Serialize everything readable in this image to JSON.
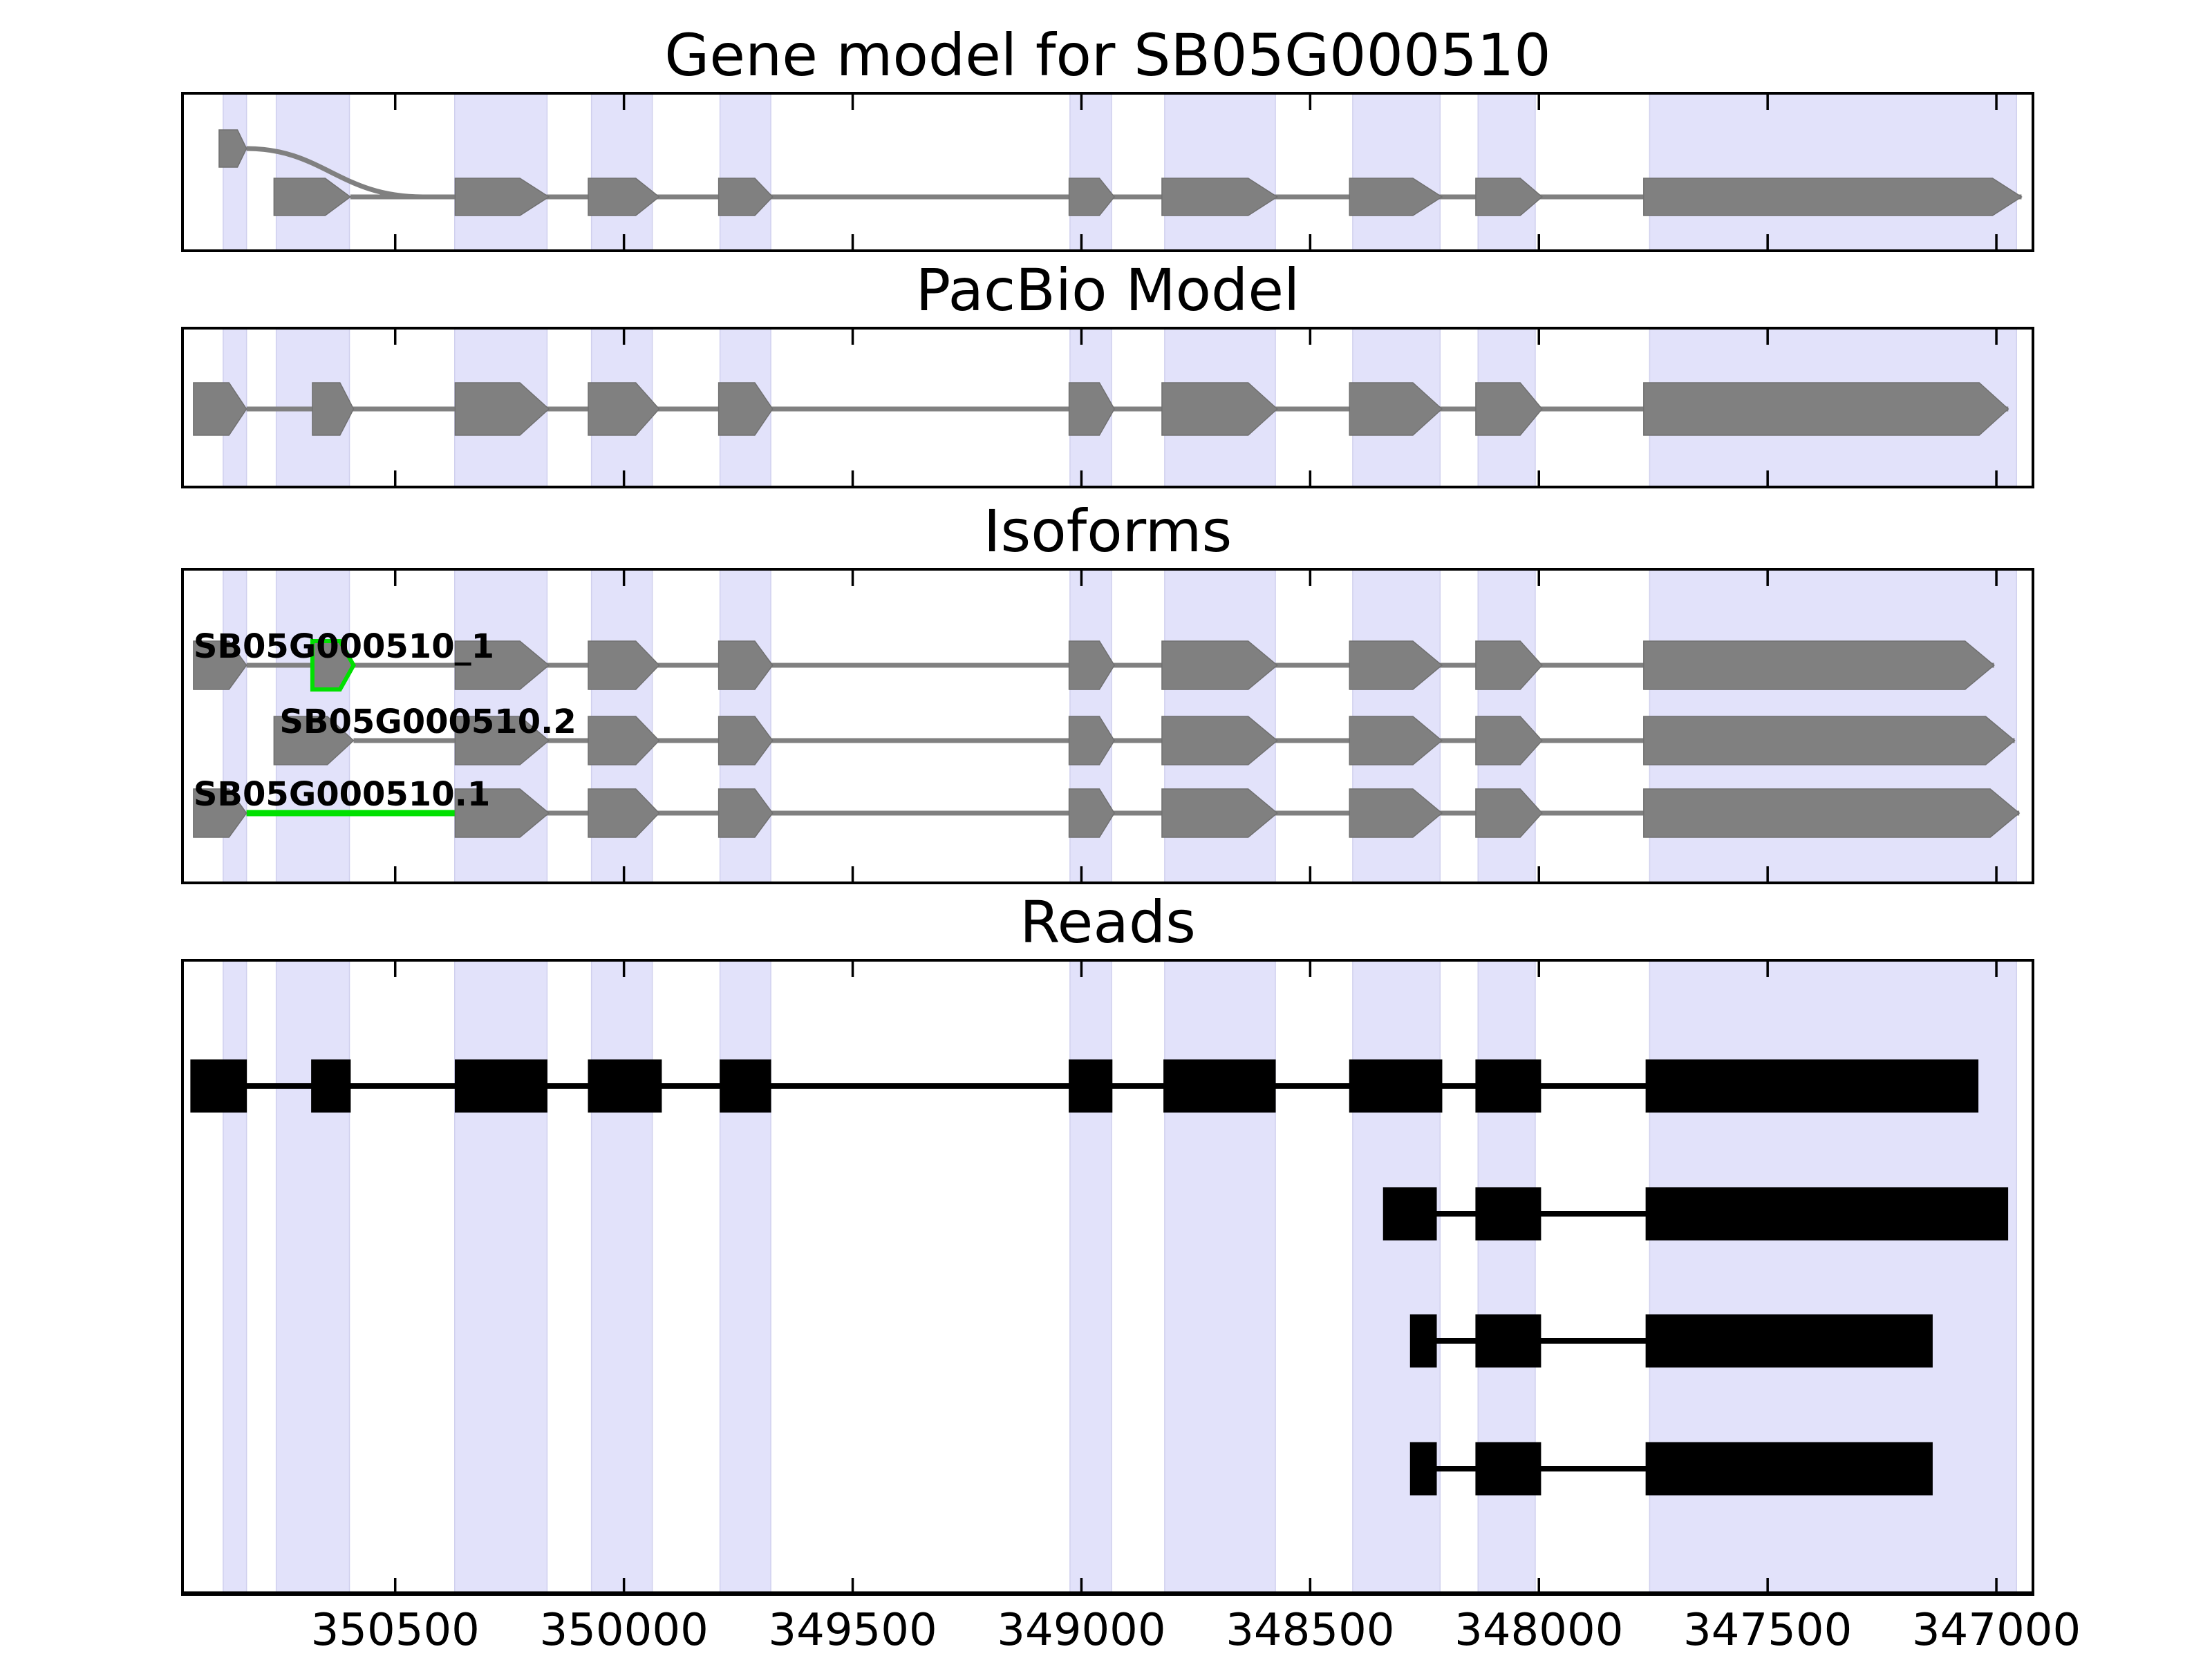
{
  "chart_data": {
    "type": "gene-structure-browser",
    "gene_id": "SB05G000510",
    "x_axis": {
      "domain": [
        350968,
        346917
      ],
      "reversed": true,
      "ticks": [
        350500,
        350000,
        349500,
        349000,
        348500,
        348000,
        347500,
        347000
      ],
      "tick_labels": [
        "350500",
        "350000",
        "349500",
        "349000",
        "348500",
        "348000",
        "347500",
        "347000"
      ]
    },
    "highlight_bands": [
      [
        350876,
        350825
      ],
      [
        350760,
        350600
      ],
      [
        350370,
        350168
      ],
      [
        350071,
        349938
      ],
      [
        349790,
        349679
      ],
      [
        349025,
        348934
      ],
      [
        348818,
        348576
      ],
      [
        348407,
        348216
      ],
      [
        348133,
        348008
      ],
      [
        347758,
        346956
      ]
    ],
    "panels": [
      {
        "id": "gene_model",
        "title": "Gene model for SB05G000510",
        "exons_row0": [
          [
            350885,
            350825
          ]
        ],
        "exons_row1": [
          [
            350765,
            350598
          ],
          [
            350369,
            350164
          ],
          [
            350078,
            349923
          ],
          [
            349793,
            349675
          ],
          [
            349027,
            348928
          ],
          [
            348824,
            348572
          ],
          [
            348414,
            348212
          ],
          [
            348138,
            347993
          ],
          [
            347771,
            346945
          ]
        ],
        "connector": {
          "from": 350598,
          "to": 346945
        },
        "curved_intron": {
          "from": 350825,
          "to": 350440
        }
      },
      {
        "id": "pacbio",
        "title": "PacBio Model",
        "exons": [
          [
            350941,
            350825
          ],
          [
            350681,
            350591
          ],
          [
            350369,
            350164
          ],
          [
            350078,
            349923
          ],
          [
            349793,
            349675
          ],
          [
            349027,
            348928
          ],
          [
            348824,
            348572
          ],
          [
            348414,
            348212
          ],
          [
            348138,
            347993
          ],
          [
            347771,
            346974
          ]
        ],
        "connector": {
          "from": 350825,
          "to": 346974
        }
      },
      {
        "id": "isoforms",
        "title": "Isoforms",
        "transcripts": [
          {
            "label": "SB05G000510_1",
            "exons": [
              [
                350941,
                350825
              ],
              [
                350369,
                350164
              ],
              [
                350078,
                349923
              ],
              [
                349793,
                349675
              ],
              [
                349027,
                348928
              ],
              [
                348824,
                348572
              ],
              [
                348414,
                348212
              ],
              [
                348138,
                347993
              ],
              [
                347771,
                347005
              ]
            ],
            "highlight_exon": [
              350681,
              350591
            ],
            "connector": {
              "from": 350825,
              "to": 347005
            }
          },
          {
            "label": "SB05G000510.2",
            "exons": [
              [
                350765,
                350591
              ],
              [
                350369,
                350164
              ],
              [
                350078,
                349923
              ],
              [
                349793,
                349675
              ],
              [
                349027,
                348928
              ],
              [
                348824,
                348572
              ],
              [
                348414,
                348212
              ],
              [
                348138,
                347993
              ],
              [
                347771,
                346960
              ]
            ],
            "connector": {
              "from": 350591,
              "to": 346960
            }
          },
          {
            "label": "SB05G000510.1",
            "exons": [
              [
                350941,
                350825
              ],
              [
                350369,
                350164
              ],
              [
                350078,
                349923
              ],
              [
                349793,
                349675
              ],
              [
                349027,
                348928
              ],
              [
                348824,
                348572
              ],
              [
                348414,
                348212
              ],
              [
                348138,
                347993
              ],
              [
                347771,
                346950
              ]
            ],
            "highlight_intron": [
              350825,
              350369
            ],
            "connector": {
              "from": 350825,
              "to": 346950
            }
          }
        ]
      },
      {
        "id": "reads",
        "title": "Reads",
        "reads": [
          {
            "exons": [
              [
                350947,
                350825
              ],
              [
                350683,
                350598
              ],
              [
                350369,
                350168
              ],
              [
                350078,
                349918
              ],
              [
                349790,
                349679
              ],
              [
                349027,
                348933
              ],
              [
                348820,
                348576
              ],
              [
                348414,
                348212
              ],
              [
                348138,
                347996
              ],
              [
                347766,
                347040
              ]
            ]
          },
          {
            "exons": [
              [
                348340,
                348224
              ],
              [
                348138,
                347996
              ],
              [
                347766,
                346975
              ]
            ]
          },
          {
            "exons": [
              [
                348281,
                348224
              ],
              [
                348138,
                347996
              ],
              [
                347766,
                347140
              ]
            ]
          },
          {
            "exons": [
              [
                348281,
                348224
              ],
              [
                348138,
                347996
              ],
              [
                347766,
                347140
              ]
            ]
          }
        ]
      }
    ],
    "colors": {
      "band": "#e2e2fa",
      "band_edge": "#d0d0ee",
      "exon_fill": "#808080",
      "exon_edge": "#707070",
      "read_fill": "#000000",
      "highlight_green": "#00e000",
      "axis": "#000000"
    }
  }
}
